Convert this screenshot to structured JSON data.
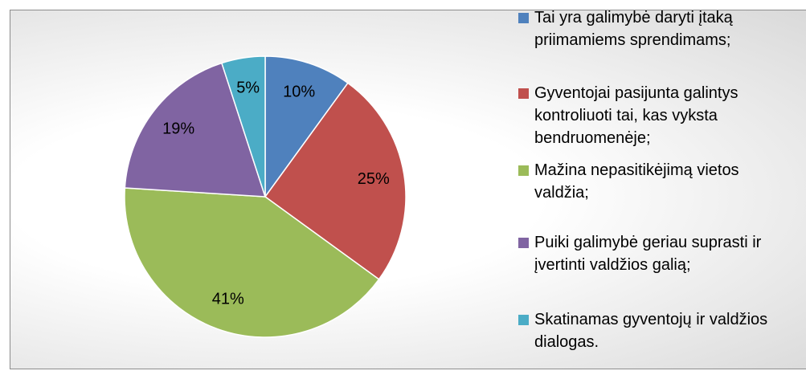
{
  "chart_data": {
    "type": "pie",
    "categories": [
      "Tai yra galimybė daryti įtaką priimamiems sprendimams;",
      "Gyventojai pasijunta galintys kontroliuoti tai, kas vyksta bendruomenėje;",
      "Mažina nepasitikėjimą vietos valdžia;",
      "Puiki galimybė geriau suprasti ir įvertinti valdžios galią;",
      "Skatinamas gyventojų ir valdžios dialogas."
    ],
    "values": [
      10,
      25,
      41,
      19,
      5
    ],
    "value_labels": [
      "10%",
      "25%",
      "41%",
      "19%",
      "5%"
    ],
    "colors": [
      "#4f81bd",
      "#c0504d",
      "#9bbb59",
      "#8064a2",
      "#4bacc6"
    ],
    "legend": "right"
  }
}
